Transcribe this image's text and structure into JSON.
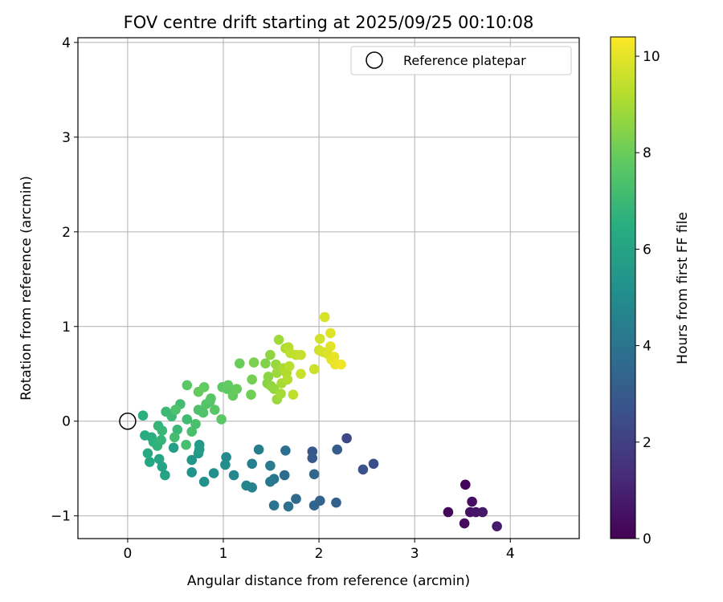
{
  "chart_data": {
    "type": "scatter",
    "title": "FOV centre drift starting at 2025/09/25 00:10:08",
    "xlabel": "Angular distance from reference (arcmin)",
    "ylabel": "Rotation from reference (arcmin)",
    "colorbar_label": "Hours from first FF file",
    "xlim": [
      -0.52,
      4.72
    ],
    "ylim": [
      -1.24,
      4.05
    ],
    "xticks": [
      0,
      1,
      2,
      3,
      4
    ],
    "yticks": [
      -1,
      0,
      1,
      2,
      3,
      4
    ],
    "colorbar_range": [
      0,
      10.4
    ],
    "colorbar_ticks": [
      0,
      2,
      4,
      6,
      8,
      10
    ],
    "colormap": "viridis",
    "grid": true,
    "legend_position": "top-right",
    "reference": {
      "label": "Reference platepar",
      "x": 0,
      "y": 0
    },
    "points": [
      [
        3.53,
        -0.67,
        0.1
      ],
      [
        3.35,
        -0.96,
        0.2
      ],
      [
        3.52,
        -1.08,
        0.3
      ],
      [
        3.6,
        -0.85,
        0.4
      ],
      [
        3.58,
        -0.96,
        0.5
      ],
      [
        3.64,
        -0.96,
        0.6
      ],
      [
        3.71,
        -0.96,
        0.7
      ],
      [
        3.86,
        -1.11,
        0.8
      ],
      [
        2.29,
        -0.18,
        2.3
      ],
      [
        2.57,
        -0.45,
        2.5
      ],
      [
        2.46,
        -0.51,
        2.7
      ],
      [
        1.93,
        -0.32,
        2.9
      ],
      [
        1.93,
        -0.39,
        3.0
      ],
      [
        2.19,
        -0.3,
        3.1
      ],
      [
        2.18,
        -0.86,
        3.2
      ],
      [
        2.01,
        -0.84,
        3.3
      ],
      [
        1.95,
        -0.89,
        3.4
      ],
      [
        1.95,
        -0.56,
        3.5
      ],
      [
        1.76,
        -0.82,
        3.6
      ],
      [
        1.64,
        -0.57,
        3.7
      ],
      [
        1.65,
        -0.31,
        3.8
      ],
      [
        1.68,
        -0.9,
        3.9
      ],
      [
        1.53,
        -0.89,
        4.0
      ],
      [
        1.53,
        -0.61,
        4.1
      ],
      [
        1.49,
        -0.64,
        4.2
      ],
      [
        1.49,
        -0.47,
        4.3
      ],
      [
        1.37,
        -0.3,
        4.4
      ],
      [
        1.3,
        -0.45,
        4.5
      ],
      [
        1.3,
        -0.7,
        4.6
      ],
      [
        1.24,
        -0.68,
        4.7
      ],
      [
        1.11,
        -0.57,
        4.8
      ],
      [
        1.03,
        -0.38,
        4.9
      ],
      [
        1.02,
        -0.46,
        5.0
      ],
      [
        0.9,
        -0.55,
        5.1
      ],
      [
        0.8,
        -0.64,
        5.2
      ],
      [
        0.67,
        -0.54,
        5.3
      ],
      [
        0.67,
        -0.41,
        5.4
      ],
      [
        0.74,
        -0.34,
        5.5
      ],
      [
        0.75,
        -0.25,
        5.6
      ],
      [
        0.75,
        -0.3,
        5.7
      ],
      [
        0.48,
        -0.28,
        5.8
      ],
      [
        0.39,
        -0.57,
        5.9
      ],
      [
        0.36,
        -0.48,
        6.0
      ],
      [
        0.33,
        -0.4,
        6.1
      ],
      [
        0.23,
        -0.43,
        6.2
      ],
      [
        0.21,
        -0.34,
        6.3
      ],
      [
        0.18,
        -0.15,
        6.4
      ],
      [
        0.25,
        -0.17,
        6.5
      ],
      [
        0.27,
        -0.22,
        6.6
      ],
      [
        0.31,
        -0.26,
        6.7
      ],
      [
        0.35,
        -0.2,
        6.8
      ],
      [
        0.36,
        -0.1,
        6.9
      ],
      [
        0.4,
        0.1,
        7.0
      ],
      [
        0.46,
        0.05,
        7.05
      ],
      [
        0.16,
        0.06,
        6.55
      ],
      [
        0.32,
        -0.05,
        6.85
      ],
      [
        0.52,
        -0.09,
        6.95
      ],
      [
        0.62,
        0.02,
        7.1
      ],
      [
        0.55,
        0.18,
        7.15
      ],
      [
        0.49,
        -0.17,
        7.2
      ],
      [
        0.61,
        -0.25,
        7.25
      ],
      [
        0.67,
        -0.11,
        7.3
      ],
      [
        0.71,
        -0.03,
        7.35
      ],
      [
        0.74,
        0.12,
        7.4
      ],
      [
        0.79,
        0.09,
        7.45
      ],
      [
        0.82,
        0.18,
        7.5
      ],
      [
        0.86,
        0.21,
        7.55
      ],
      [
        0.87,
        0.24,
        7.6
      ],
      [
        0.91,
        0.12,
        7.65
      ],
      [
        0.98,
        0.02,
        7.7
      ],
      [
        0.99,
        0.36,
        7.75
      ],
      [
        1.04,
        0.34,
        7.8
      ],
      [
        1.05,
        0.38,
        7.85
      ],
      [
        1.1,
        0.27,
        7.9
      ],
      [
        1.14,
        0.34,
        7.95
      ],
      [
        1.17,
        0.61,
        8.0
      ],
      [
        0.8,
        0.36,
        7.85
      ],
      [
        0.74,
        0.31,
        7.9
      ],
      [
        0.62,
        0.38,
        7.7
      ],
      [
        0.5,
        0.12,
        7.4
      ],
      [
        1.29,
        0.28,
        8.1
      ],
      [
        1.3,
        0.44,
        8.2
      ],
      [
        1.32,
        0.62,
        8.3
      ],
      [
        1.44,
        0.61,
        8.4
      ],
      [
        1.46,
        0.4,
        8.5
      ],
      [
        1.47,
        0.47,
        8.55
      ],
      [
        1.49,
        0.7,
        8.6
      ],
      [
        1.5,
        0.37,
        8.65
      ],
      [
        1.53,
        0.34,
        8.7
      ],
      [
        1.55,
        0.6,
        8.75
      ],
      [
        1.56,
        0.23,
        8.8
      ],
      [
        1.56,
        0.51,
        8.85
      ],
      [
        1.58,
        0.86,
        8.9
      ],
      [
        1.6,
        0.29,
        8.95
      ],
      [
        1.61,
        0.4,
        9.0
      ],
      [
        1.63,
        0.56,
        9.05
      ],
      [
        1.65,
        0.77,
        9.1
      ],
      [
        1.66,
        0.51,
        9.15
      ],
      [
        1.67,
        0.44,
        9.2
      ],
      [
        1.68,
        0.78,
        9.25
      ],
      [
        1.69,
        0.58,
        9.3
      ],
      [
        1.7,
        0.72,
        9.35
      ],
      [
        1.73,
        0.28,
        9.4
      ],
      [
        1.76,
        0.7,
        9.45
      ],
      [
        1.81,
        0.7,
        9.5
      ],
      [
        1.81,
        0.5,
        9.55
      ],
      [
        1.95,
        0.55,
        9.6
      ],
      [
        2.0,
        0.75,
        9.65
      ],
      [
        2.01,
        0.87,
        9.7
      ],
      [
        2.04,
        0.73,
        9.75
      ],
      [
        2.06,
        1.1,
        9.8
      ],
      [
        2.09,
        0.71,
        9.85
      ],
      [
        2.12,
        0.93,
        9.9
      ],
      [
        2.12,
        0.79,
        9.95
      ],
      [
        2.13,
        0.65,
        10.0
      ],
      [
        2.16,
        0.68,
        10.05
      ],
      [
        2.17,
        0.6,
        10.1
      ],
      [
        2.23,
        0.6,
        10.2
      ]
    ]
  }
}
